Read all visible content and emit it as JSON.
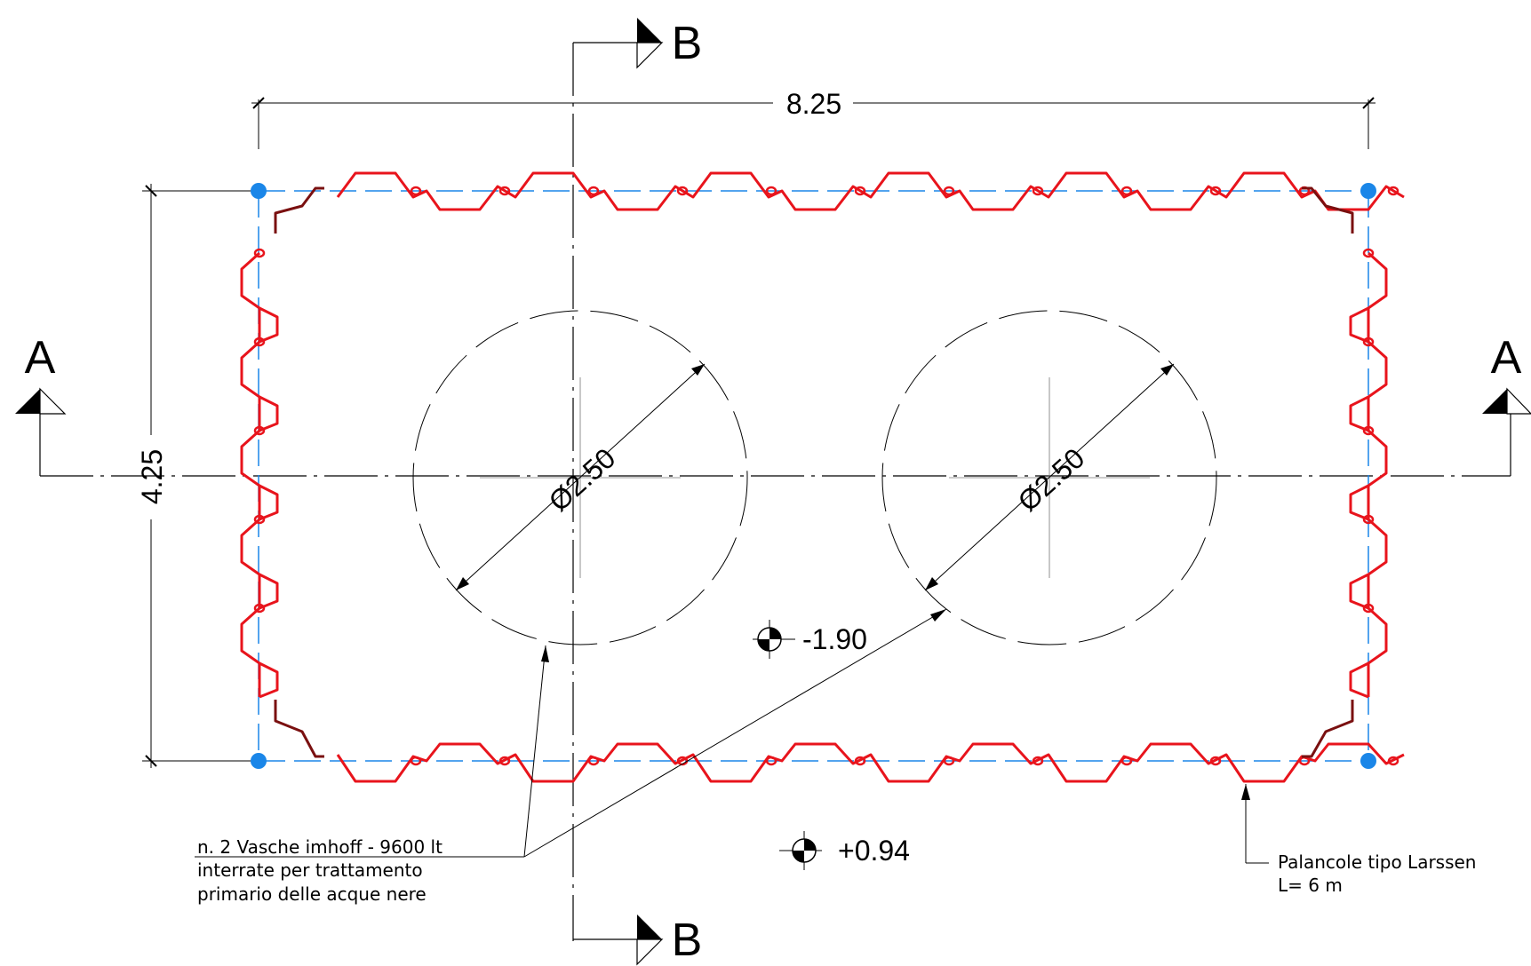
{
  "dimensions": {
    "length": "8.25",
    "width": "4.25",
    "diameter_left": "Ø2.50",
    "diameter_right": "Ø2.50"
  },
  "section_marks": {
    "a_left": "A",
    "a_right": "A",
    "b_top": "B",
    "b_bottom": "B"
  },
  "levels": {
    "bottom": "-1.90",
    "ground": "+0.94"
  },
  "notes": {
    "tanks": {
      "line1": "n. 2 Vasche imhoff - 9600 lt",
      "line2": "interrate per trattamento",
      "line3": "primario delle acque nere"
    },
    "sheet_piles": {
      "line1": "Palancole tipo Larssen",
      "line2": "L= 6 m"
    }
  },
  "colors": {
    "sheet_pile": "#e8141c",
    "sheet_pile_dark": "#7a1010",
    "outline": "#1a86e8",
    "corner_point": "#1a86e8",
    "linework": "#000000"
  }
}
